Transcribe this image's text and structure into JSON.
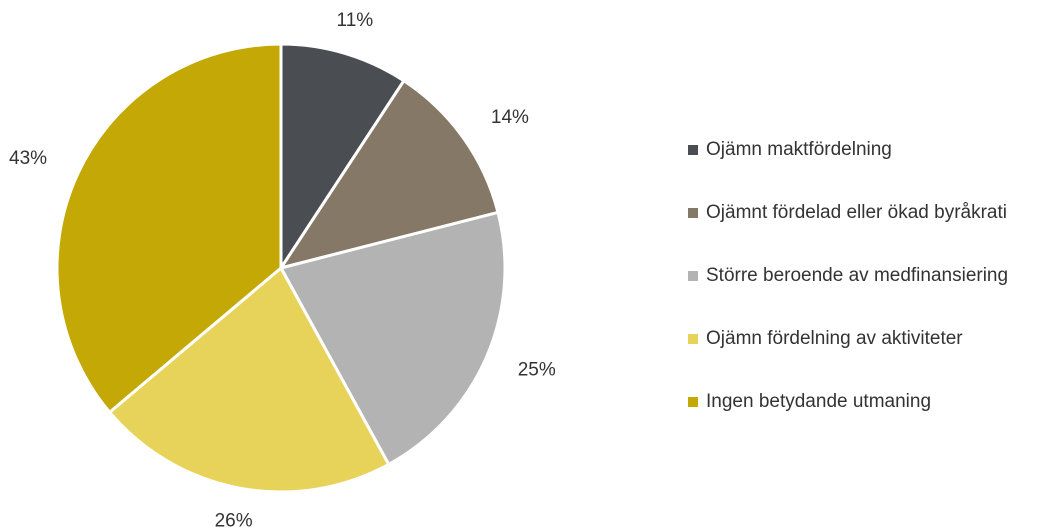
{
  "chart_data": {
    "type": "pie",
    "categories": [
      "Ojämn maktfördelning",
      "Ojämnt fördelad eller ökad byråkrati",
      "Större beroende av medfinansiering",
      "Ojämn fördelning av aktiviteter",
      "Ingen betydande utmaning"
    ],
    "values": [
      11,
      14,
      25,
      26,
      43
    ],
    "value_labels": [
      "11%",
      "14%",
      "25%",
      "26%",
      "43%"
    ],
    "colors": [
      "#4a4d52",
      "#857866",
      "#b3b3b3",
      "#e8d35a",
      "#c4a806"
    ],
    "legend": "right"
  }
}
